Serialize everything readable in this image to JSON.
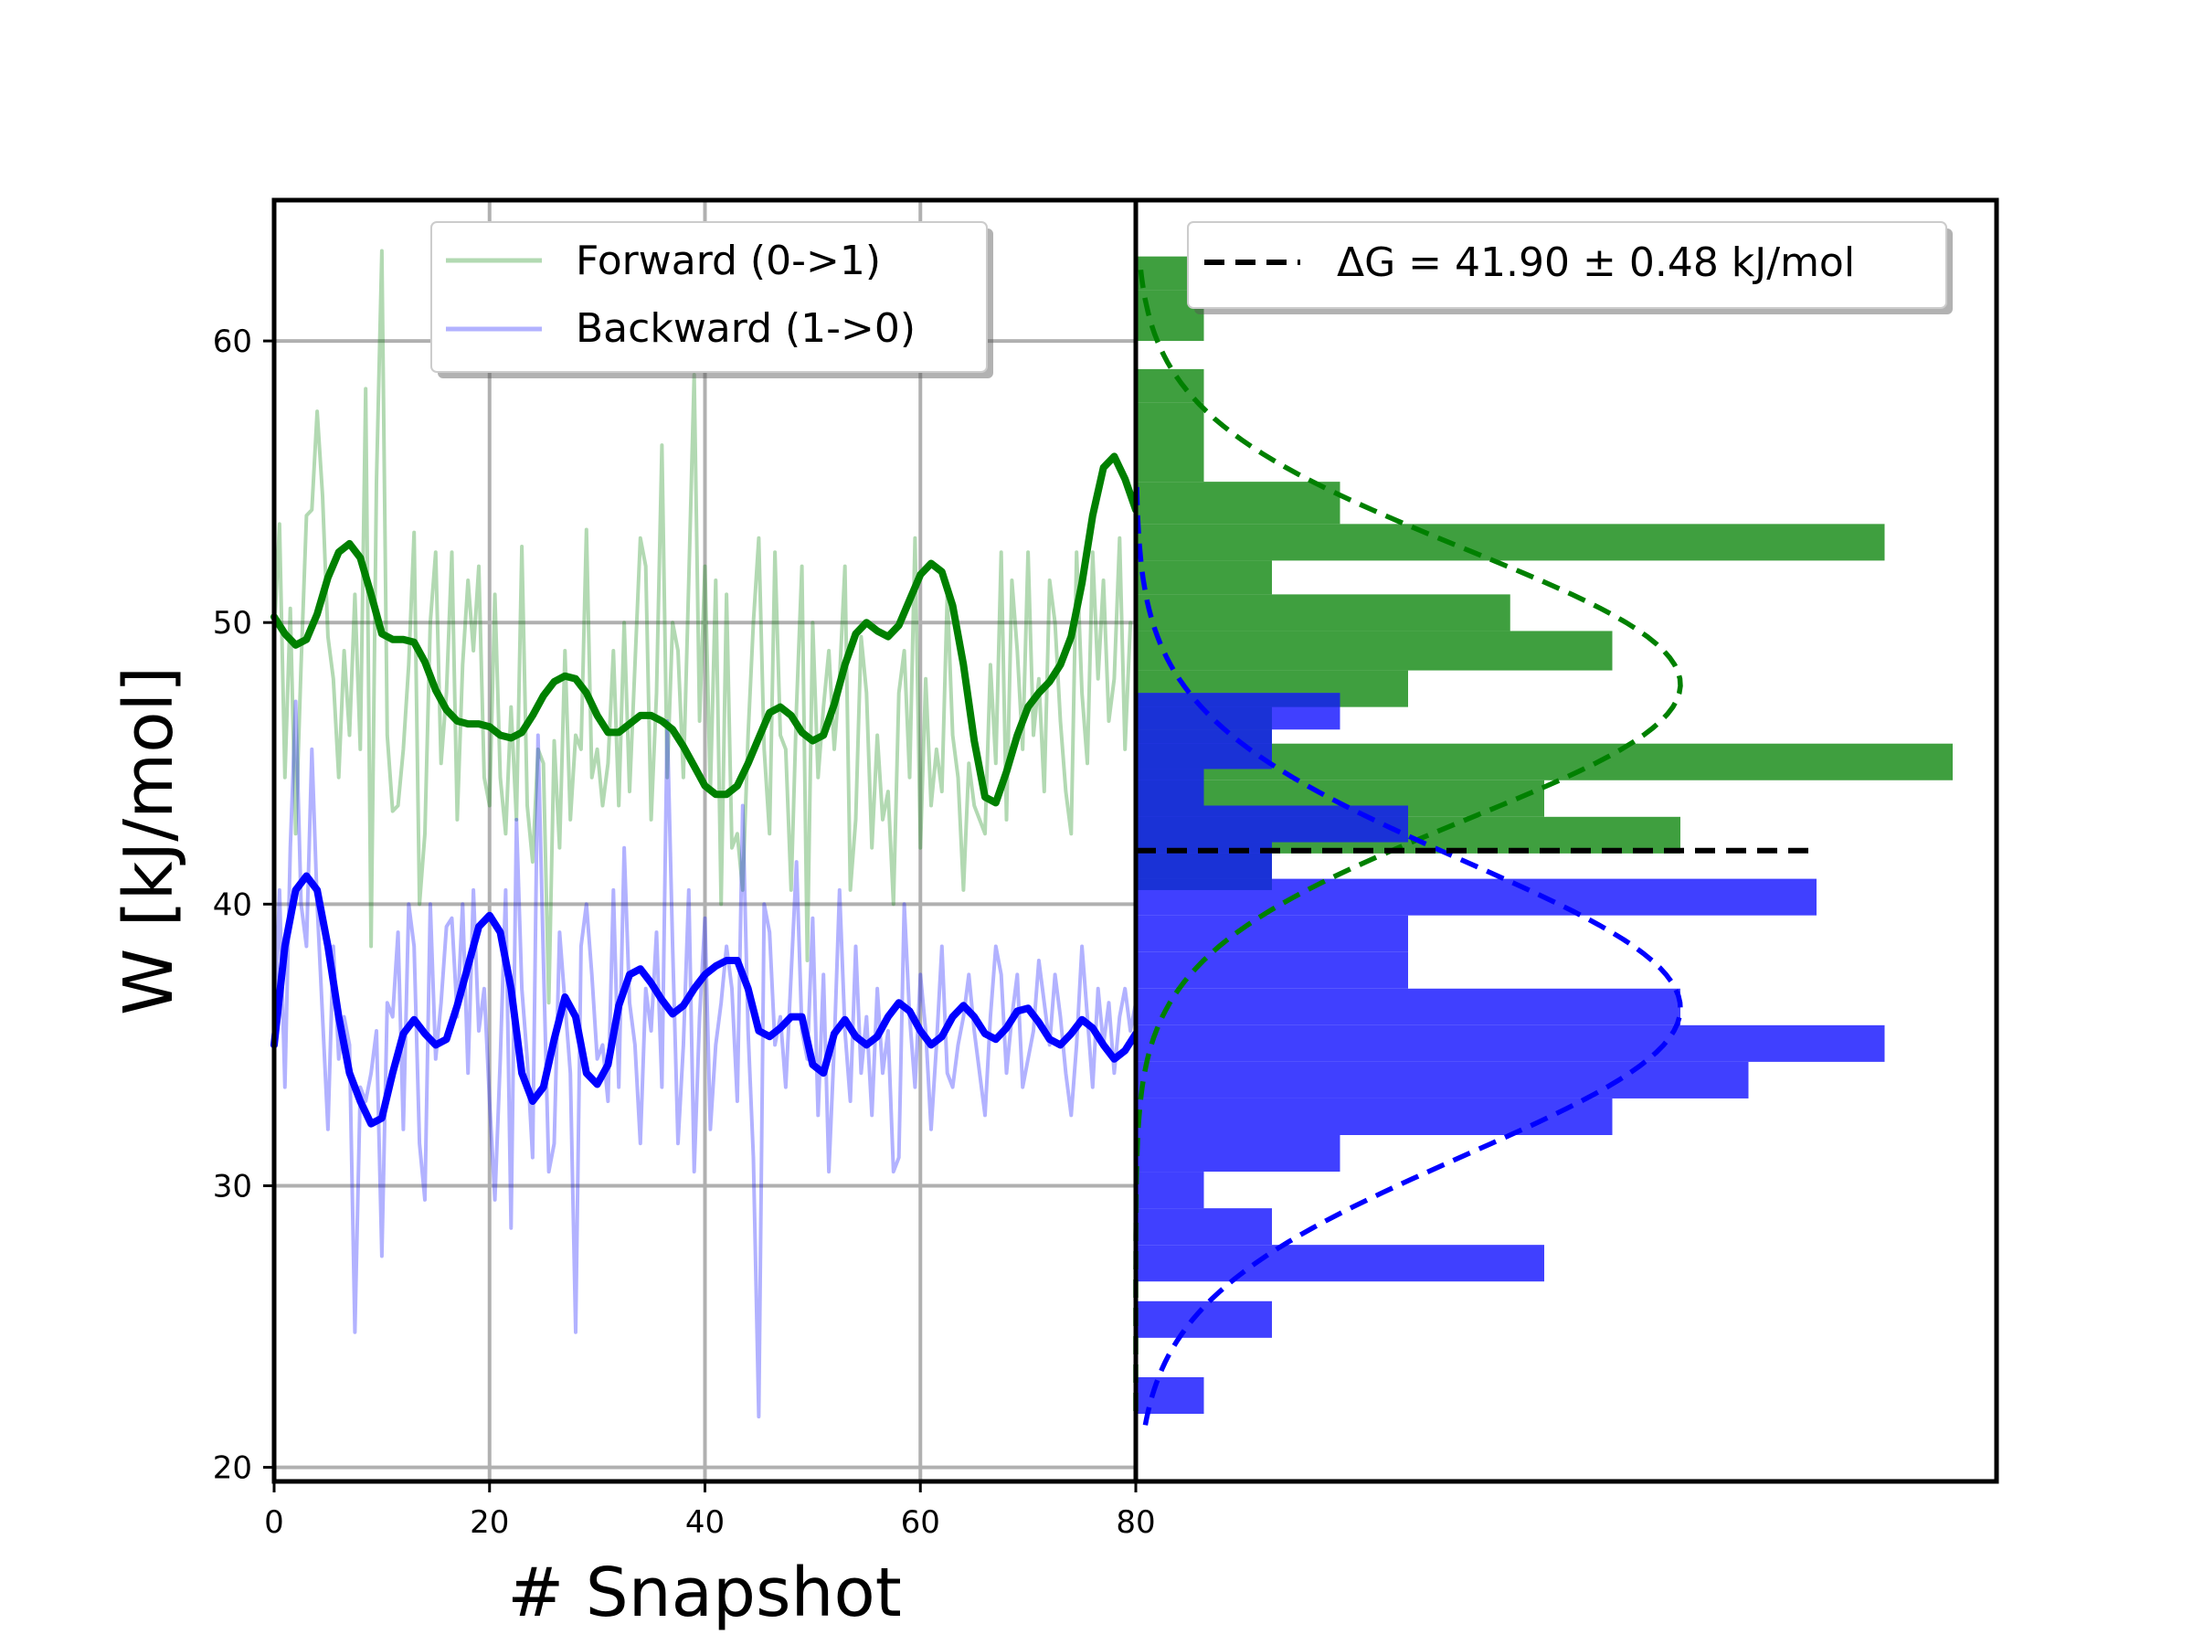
{
  "chart_data": [
    {
      "type": "line",
      "xlabel": "# Snapshot",
      "ylabel": "W [kJ/mol]",
      "xlim": [
        0,
        80
      ],
      "ylim": [
        19.5,
        65
      ],
      "x_ticks": [
        "0",
        "20",
        "40",
        "60",
        "80"
      ],
      "y_ticks": [
        "20",
        "30",
        "40",
        "50",
        "60"
      ],
      "grid": true,
      "legend_position": "top-center",
      "colors": {
        "forward": "#008000",
        "backward": "#0000ff"
      },
      "series": [
        {
          "name": "Forward (0->1)",
          "role": "raw",
          "x_step": 0.5,
          "values": [
            49.5,
            53.5,
            44.5,
            50.5,
            42.5,
            48.5,
            53.8,
            54.0,
            57.5,
            54.5,
            49.5,
            48.0,
            44.5,
            49.0,
            46.0,
            51.0,
            45.5,
            58.3,
            38.5,
            55.0,
            63.2,
            46.0,
            43.3,
            43.5,
            45.5,
            48.5,
            53.2,
            40.0,
            42.5,
            50.0,
            52.5,
            45.0,
            47.5,
            52.5,
            43.0,
            48.5,
            51.5,
            49.0,
            52.0,
            44.5,
            43.5,
            51.0,
            44.5,
            42.5,
            47.0,
            43.0,
            52.7,
            43.5,
            41.5,
            45.5,
            45.0,
            36.5,
            45.8,
            42.0,
            49.0,
            43.0,
            46.0,
            45.5,
            53.3,
            44.5,
            45.5,
            43.5,
            45.0,
            49.0,
            43.5,
            50.0,
            44.0,
            48.5,
            53.0,
            52.0,
            43.0,
            47.5,
            56.3,
            44.5,
            50.0,
            49.0,
            44.5,
            51.5,
            58.8,
            46.5,
            52.0,
            44.0,
            51.5,
            40.0,
            51.0,
            42.0,
            42.5,
            40.5,
            46.0,
            50.0,
            53.0,
            45.5,
            42.5,
            52.5,
            46.0,
            45.5,
            40.5,
            47.0,
            52.0,
            38.0,
            50.0,
            44.5,
            47.0,
            49.0,
            45.5,
            48.0,
            52.0,
            40.5,
            43.0,
            49.5,
            47.5,
            42.0,
            46.0,
            43.0,
            44.0,
            40.0,
            47.5,
            49.0,
            44.5,
            53.0,
            42.0,
            48.0,
            43.5,
            45.5,
            44.0,
            51.0,
            46.0,
            44.5,
            40.5,
            45.0,
            43.5,
            43.0,
            42.5,
            48.5,
            45.0,
            52.5,
            43.0,
            51.5,
            49.0,
            45.5,
            52.5,
            46.0,
            48.0,
            44.0,
            51.5,
            50.0,
            46.5,
            44.0,
            42.5,
            52.5,
            47.5,
            45.0,
            52.5,
            48.0,
            51.5,
            46.5,
            48.0,
            53.0,
            45.5,
            50.0
          ]
        },
        {
          "name": "Forward (0->1)",
          "role": "smoothed",
          "x": [
            0,
            1,
            2,
            3,
            4,
            5,
            6,
            7,
            8,
            9,
            10,
            11,
            12,
            13,
            14,
            15,
            16,
            17,
            18,
            19,
            20,
            21,
            22,
            23,
            24,
            25,
            26,
            27,
            28,
            29,
            30,
            31,
            32,
            33,
            34,
            35,
            36,
            37,
            38,
            39,
            40,
            41,
            42,
            43,
            44,
            45,
            46,
            47,
            48,
            49,
            50,
            51,
            52,
            53,
            54,
            55,
            56,
            57,
            58,
            59,
            60,
            61,
            62,
            63,
            64,
            65,
            66,
            67,
            68,
            69,
            70,
            71,
            72,
            73,
            74,
            75,
            76,
            77,
            78,
            79,
            80
          ],
          "values": [
            50.2,
            49.6,
            49.2,
            49.4,
            50.3,
            51.6,
            52.5,
            52.8,
            52.3,
            51.0,
            49.6,
            49.4,
            49.4,
            49.3,
            48.6,
            47.6,
            46.9,
            46.5,
            46.4,
            46.4,
            46.3,
            46.0,
            45.9,
            46.1,
            46.7,
            47.4,
            47.9,
            48.1,
            48.0,
            47.5,
            46.7,
            46.1,
            46.1,
            46.4,
            46.7,
            46.7,
            46.5,
            46.2,
            45.6,
            44.9,
            44.2,
            43.9,
            43.9,
            44.2,
            45.0,
            45.9,
            46.8,
            47.0,
            46.7,
            46.1,
            45.8,
            46.0,
            47.1,
            48.5,
            49.6,
            50.0,
            49.7,
            49.5,
            49.9,
            50.8,
            51.7,
            52.1,
            51.8,
            50.6,
            48.5,
            45.8,
            43.8,
            43.6,
            44.7,
            46.0,
            47.0,
            47.5,
            47.9,
            48.5,
            49.5,
            51.4,
            53.8,
            55.5,
            55.9,
            55.1,
            54.0
          ]
        },
        {
          "name": "Backward (1->0)",
          "role": "raw",
          "x_step": 0.5,
          "values": [
            35.0,
            40.5,
            33.5,
            42.0,
            47.2,
            40.0,
            38.5,
            45.5,
            40.0,
            36.0,
            32.0,
            38.5,
            34.5,
            36.0,
            35.0,
            24.8,
            33.5,
            33.0,
            34.0,
            35.5,
            27.5,
            36.5,
            36.0,
            39.0,
            32.0,
            40.0,
            38.5,
            31.5,
            29.5,
            40.0,
            34.5,
            36.5,
            39.2,
            39.5,
            36.0,
            40.0,
            34.0,
            40.5,
            35.5,
            37.0,
            33.0,
            29.5,
            34.5,
            40.5,
            28.5,
            43.0,
            37.0,
            34.5,
            31.0,
            46.0,
            38.0,
            30.5,
            31.5,
            39.0,
            36.5,
            34.0,
            24.8,
            38.5,
            40.0,
            37.5,
            34.5,
            35.0,
            33.0,
            40.5,
            33.5,
            42.0,
            36.5,
            35.0,
            31.5,
            37.0,
            35.5,
            39.0,
            33.5,
            46.5,
            38.5,
            31.5,
            35.0,
            40.5,
            30.5,
            36.0,
            39.5,
            32.0,
            35.0,
            36.5,
            38.5,
            37.0,
            33.0,
            43.5,
            35.5,
            31.0,
            21.8,
            40.0,
            39.0,
            35.0,
            36.0,
            33.5,
            37.5,
            41.5,
            35.5,
            34.5,
            39.5,
            32.5,
            37.5,
            30.5,
            35.0,
            40.5,
            35.5,
            33.0,
            38.5,
            34.0,
            36.0,
            32.5,
            37.0,
            34.0,
            35.5,
            30.5,
            31.0,
            40.0,
            36.0,
            33.5,
            37.5,
            35.5,
            32.0,
            35.0,
            38.5,
            34.0,
            33.5,
            35.0,
            36.0,
            37.5,
            35.5,
            34.0,
            32.5,
            36.0,
            38.5,
            37.5,
            34.0,
            36.0,
            37.5,
            33.5,
            34.5,
            35.5,
            38.0,
            36.5,
            35.0,
            37.5,
            36.0,
            34.0,
            32.5,
            35.0,
            38.5,
            36.0,
            33.5,
            37.0,
            35.0,
            36.5,
            34.0,
            36.0,
            37.0,
            35.5,
            36.5
          ]
        },
        {
          "name": "Backward (1->0)",
          "role": "smoothed",
          "x": [
            0,
            1,
            2,
            3,
            4,
            5,
            6,
            7,
            8,
            9,
            10,
            11,
            12,
            13,
            14,
            15,
            16,
            17,
            18,
            19,
            20,
            21,
            22,
            23,
            24,
            25,
            26,
            27,
            28,
            29,
            30,
            31,
            32,
            33,
            34,
            35,
            36,
            37,
            38,
            39,
            40,
            41,
            42,
            43,
            44,
            45,
            46,
            47,
            48,
            49,
            50,
            51,
            52,
            53,
            54,
            55,
            56,
            57,
            58,
            59,
            60,
            61,
            62,
            63,
            64,
            65,
            66,
            67,
            68,
            69,
            70,
            71,
            72,
            73,
            74,
            75,
            76,
            77,
            78,
            79,
            80
          ],
          "values": [
            35.0,
            38.5,
            40.5,
            41.0,
            40.5,
            38.5,
            36.0,
            34.0,
            33.0,
            32.2,
            32.4,
            34.0,
            35.4,
            35.9,
            35.4,
            35.0,
            35.2,
            36.4,
            37.8,
            39.2,
            39.6,
            39.0,
            37.0,
            34.0,
            33.0,
            33.5,
            35.2,
            36.7,
            36.0,
            34.0,
            33.6,
            34.3,
            36.4,
            37.5,
            37.7,
            37.2,
            36.6,
            36.1,
            36.4,
            37.0,
            37.5,
            37.8,
            38.0,
            38.0,
            37.0,
            35.5,
            35.3,
            35.6,
            36.0,
            36.0,
            34.3,
            34.0,
            35.4,
            35.9,
            35.3,
            35.0,
            35.3,
            36.0,
            36.5,
            36.2,
            35.5,
            35.0,
            35.3,
            36.0,
            36.4,
            36.0,
            35.4,
            35.2,
            35.6,
            36.2,
            36.3,
            35.8,
            35.2,
            35.0,
            35.4,
            35.9,
            35.6,
            35.0,
            34.5,
            34.8,
            35.4
          ]
        }
      ]
    },
    {
      "type": "bar",
      "orientation": "horizontal",
      "ylim": [
        19.5,
        65
      ],
      "legend_position": "top-center",
      "colors": {
        "forward_fill": "#3f9f3f",
        "backward_fill": "#4040ff",
        "overlap_fill": "#1a32d6",
        "reference": "#000000"
      },
      "series": [
        {
          "name": "Forward (0->1)",
          "bins": [
            {
              "y0": 61.8,
              "y1": 63.0,
              "count": 1
            },
            {
              "y0": 60.0,
              "y1": 61.8,
              "count": 1
            },
            {
              "y0": 57.8,
              "y1": 59.0,
              "count": 1
            },
            {
              "y0": 55.0,
              "y1": 57.8,
              "count": 1
            },
            {
              "y0": 53.5,
              "y1": 55.0,
              "count": 3
            },
            {
              "y0": 52.2,
              "y1": 53.5,
              "count": 11
            },
            {
              "y0": 51.0,
              "y1": 52.2,
              "count": 2
            },
            {
              "y0": 49.7,
              "y1": 51.0,
              "count": 5.5
            },
            {
              "y0": 48.3,
              "y1": 49.7,
              "count": 7
            },
            {
              "y0": 47.0,
              "y1": 48.3,
              "count": 4
            },
            {
              "y0": 45.7,
              "y1": 47.0,
              "count": 2
            },
            {
              "y0": 44.4,
              "y1": 45.7,
              "count": 12
            },
            {
              "y0": 43.1,
              "y1": 44.4,
              "count": 6
            },
            {
              "y0": 41.8,
              "y1": 43.1,
              "count": 8
            },
            {
              "y0": 40.5,
              "y1": 41.8,
              "count": 2
            }
          ]
        },
        {
          "name": "Backward (1->0)",
          "bins": [
            {
              "y0": 46.2,
              "y1": 47.5,
              "count": 3
            },
            {
              "y0": 44.8,
              "y1": 46.2,
              "count": 2
            },
            {
              "y0": 43.5,
              "y1": 44.8,
              "count": 1
            },
            {
              "y0": 42.2,
              "y1": 43.5,
              "count": 4
            },
            {
              "y0": 40.9,
              "y1": 42.2,
              "count": 2
            },
            {
              "y0": 39.6,
              "y1": 40.9,
              "count": 10
            },
            {
              "y0": 38.3,
              "y1": 39.6,
              "count": 4
            },
            {
              "y0": 37.0,
              "y1": 38.3,
              "count": 4
            },
            {
              "y0": 35.7,
              "y1": 37.0,
              "count": 8
            },
            {
              "y0": 34.4,
              "y1": 35.7,
              "count": 11
            },
            {
              "y0": 33.1,
              "y1": 34.4,
              "count": 9
            },
            {
              "y0": 31.8,
              "y1": 33.1,
              "count": 7
            },
            {
              "y0": 30.5,
              "y1": 31.8,
              "count": 3
            },
            {
              "y0": 29.2,
              "y1": 30.5,
              "count": 1
            },
            {
              "y0": 27.9,
              "y1": 29.2,
              "count": 2
            },
            {
              "y0": 26.6,
              "y1": 27.9,
              "count": 6
            },
            {
              "y0": 24.6,
              "y1": 25.9,
              "count": 2
            },
            {
              "y0": 21.9,
              "y1": 23.2,
              "count": 1
            }
          ]
        }
      ],
      "gaussian_fits": [
        {
          "name": "Forward (0->1)",
          "mean": 47.8,
          "sd": 4.8,
          "peak_count": 8
        },
        {
          "name": "Backward (1->0)",
          "mean": 36.3,
          "sd": 5.2,
          "peak_count": 8
        }
      ],
      "reference_line": {
        "label": "ΔG = 41.90 ± 0.48 kJ/mol",
        "value": 41.9,
        "x_extent_count": 10
      }
    }
  ],
  "legend_left": {
    "items": [
      {
        "label": "Forward (0->1)",
        "color": "#008000"
      },
      {
        "label": "Backward (1->0)",
        "color": "#0000ff"
      }
    ]
  },
  "legend_right": {
    "items": [
      {
        "label": "ΔG = 41.90 ± 0.48 kJ/mol",
        "color": "#000000"
      }
    ]
  }
}
